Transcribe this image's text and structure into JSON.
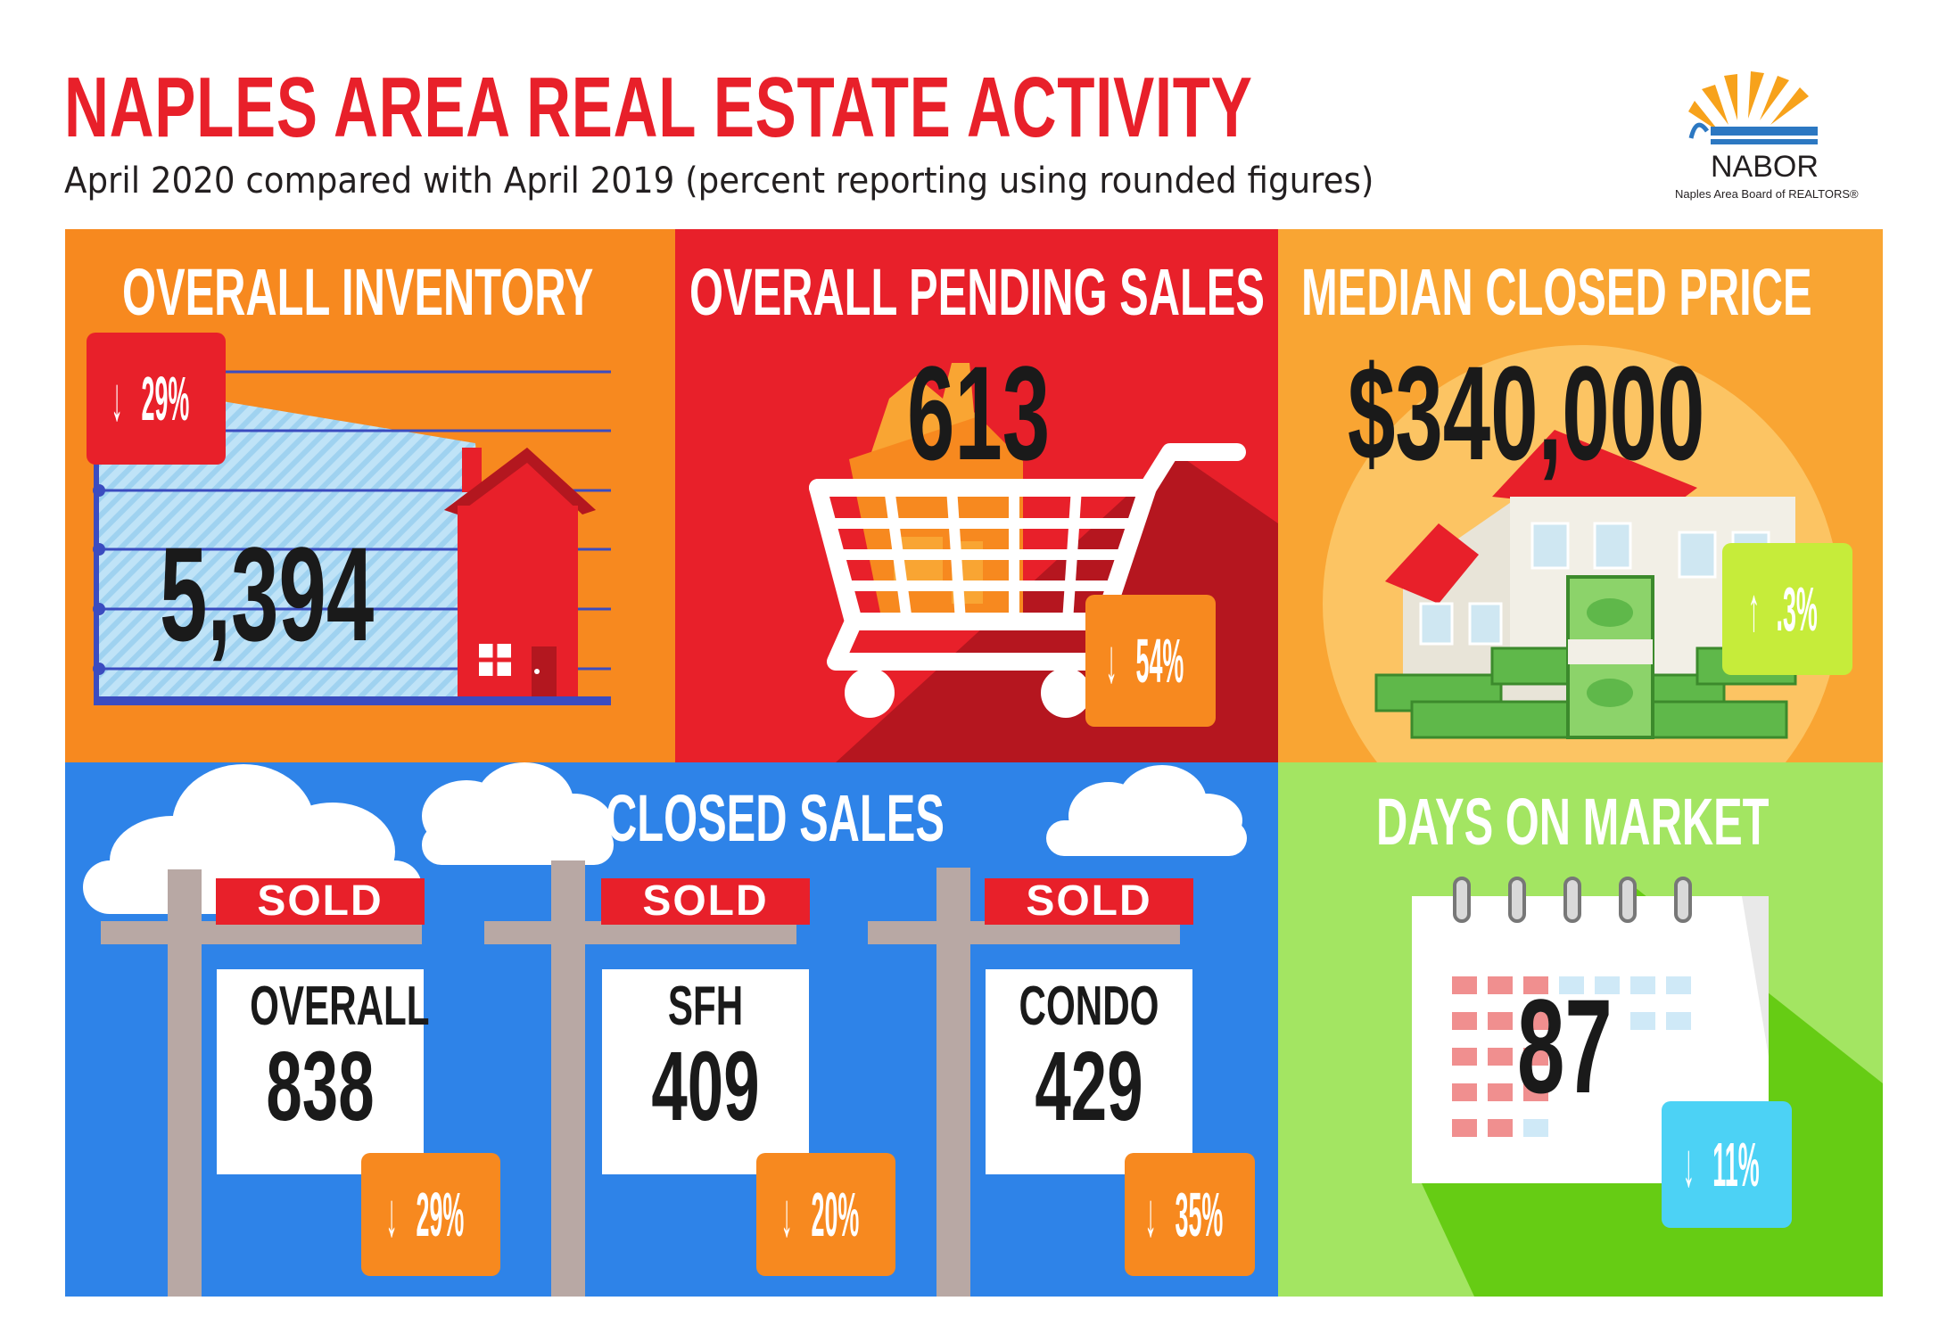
{
  "header": {
    "title": "NAPLES AREA REAL ESTATE ACTIVITY",
    "subtitle": "April 2020 compared with April 2019 (percent reporting using rounded figures)"
  },
  "logo": {
    "name": "NABOR",
    "tagline": "Naples Area Board of REALTORS®"
  },
  "inventory": {
    "title": "OVERALL INVENTORY",
    "value": "5,394",
    "change": "29%",
    "direction": "down",
    "icon": "house-chart-icon"
  },
  "pending": {
    "title": "OVERALL PENDING SALES",
    "value": "613",
    "change": "54%",
    "direction": "down",
    "icon": "shopping-cart-house-icon"
  },
  "price": {
    "title": "MEDIAN CLOSED PRICE",
    "value": "$340,000",
    "change": ".3%",
    "direction": "up",
    "icon": "house-money-icon"
  },
  "closed": {
    "title": "CLOSED SALES",
    "signs": [
      {
        "sold": "SOLD",
        "label": "OVERALL",
        "value": "838",
        "change": "29%",
        "direction": "down"
      },
      {
        "sold": "SOLD",
        "label": "SFH",
        "value": "409",
        "change": "20%",
        "direction": "down"
      },
      {
        "sold": "SOLD",
        "label": "CONDO",
        "value": "429",
        "change": "35%",
        "direction": "down"
      }
    ]
  },
  "dom": {
    "title": "DAYS ON MARKET",
    "value": "87",
    "change": "11%",
    "direction": "down",
    "icon": "calendar-icon"
  },
  "colors": {
    "red": "#e8202a",
    "orange": "#f7891f",
    "light_orange": "#f9a533",
    "blue": "#2e83e8",
    "green": "#a3e562",
    "lime_badge": "#c6ec3a",
    "cyan_badge": "#4cd2f5"
  }
}
